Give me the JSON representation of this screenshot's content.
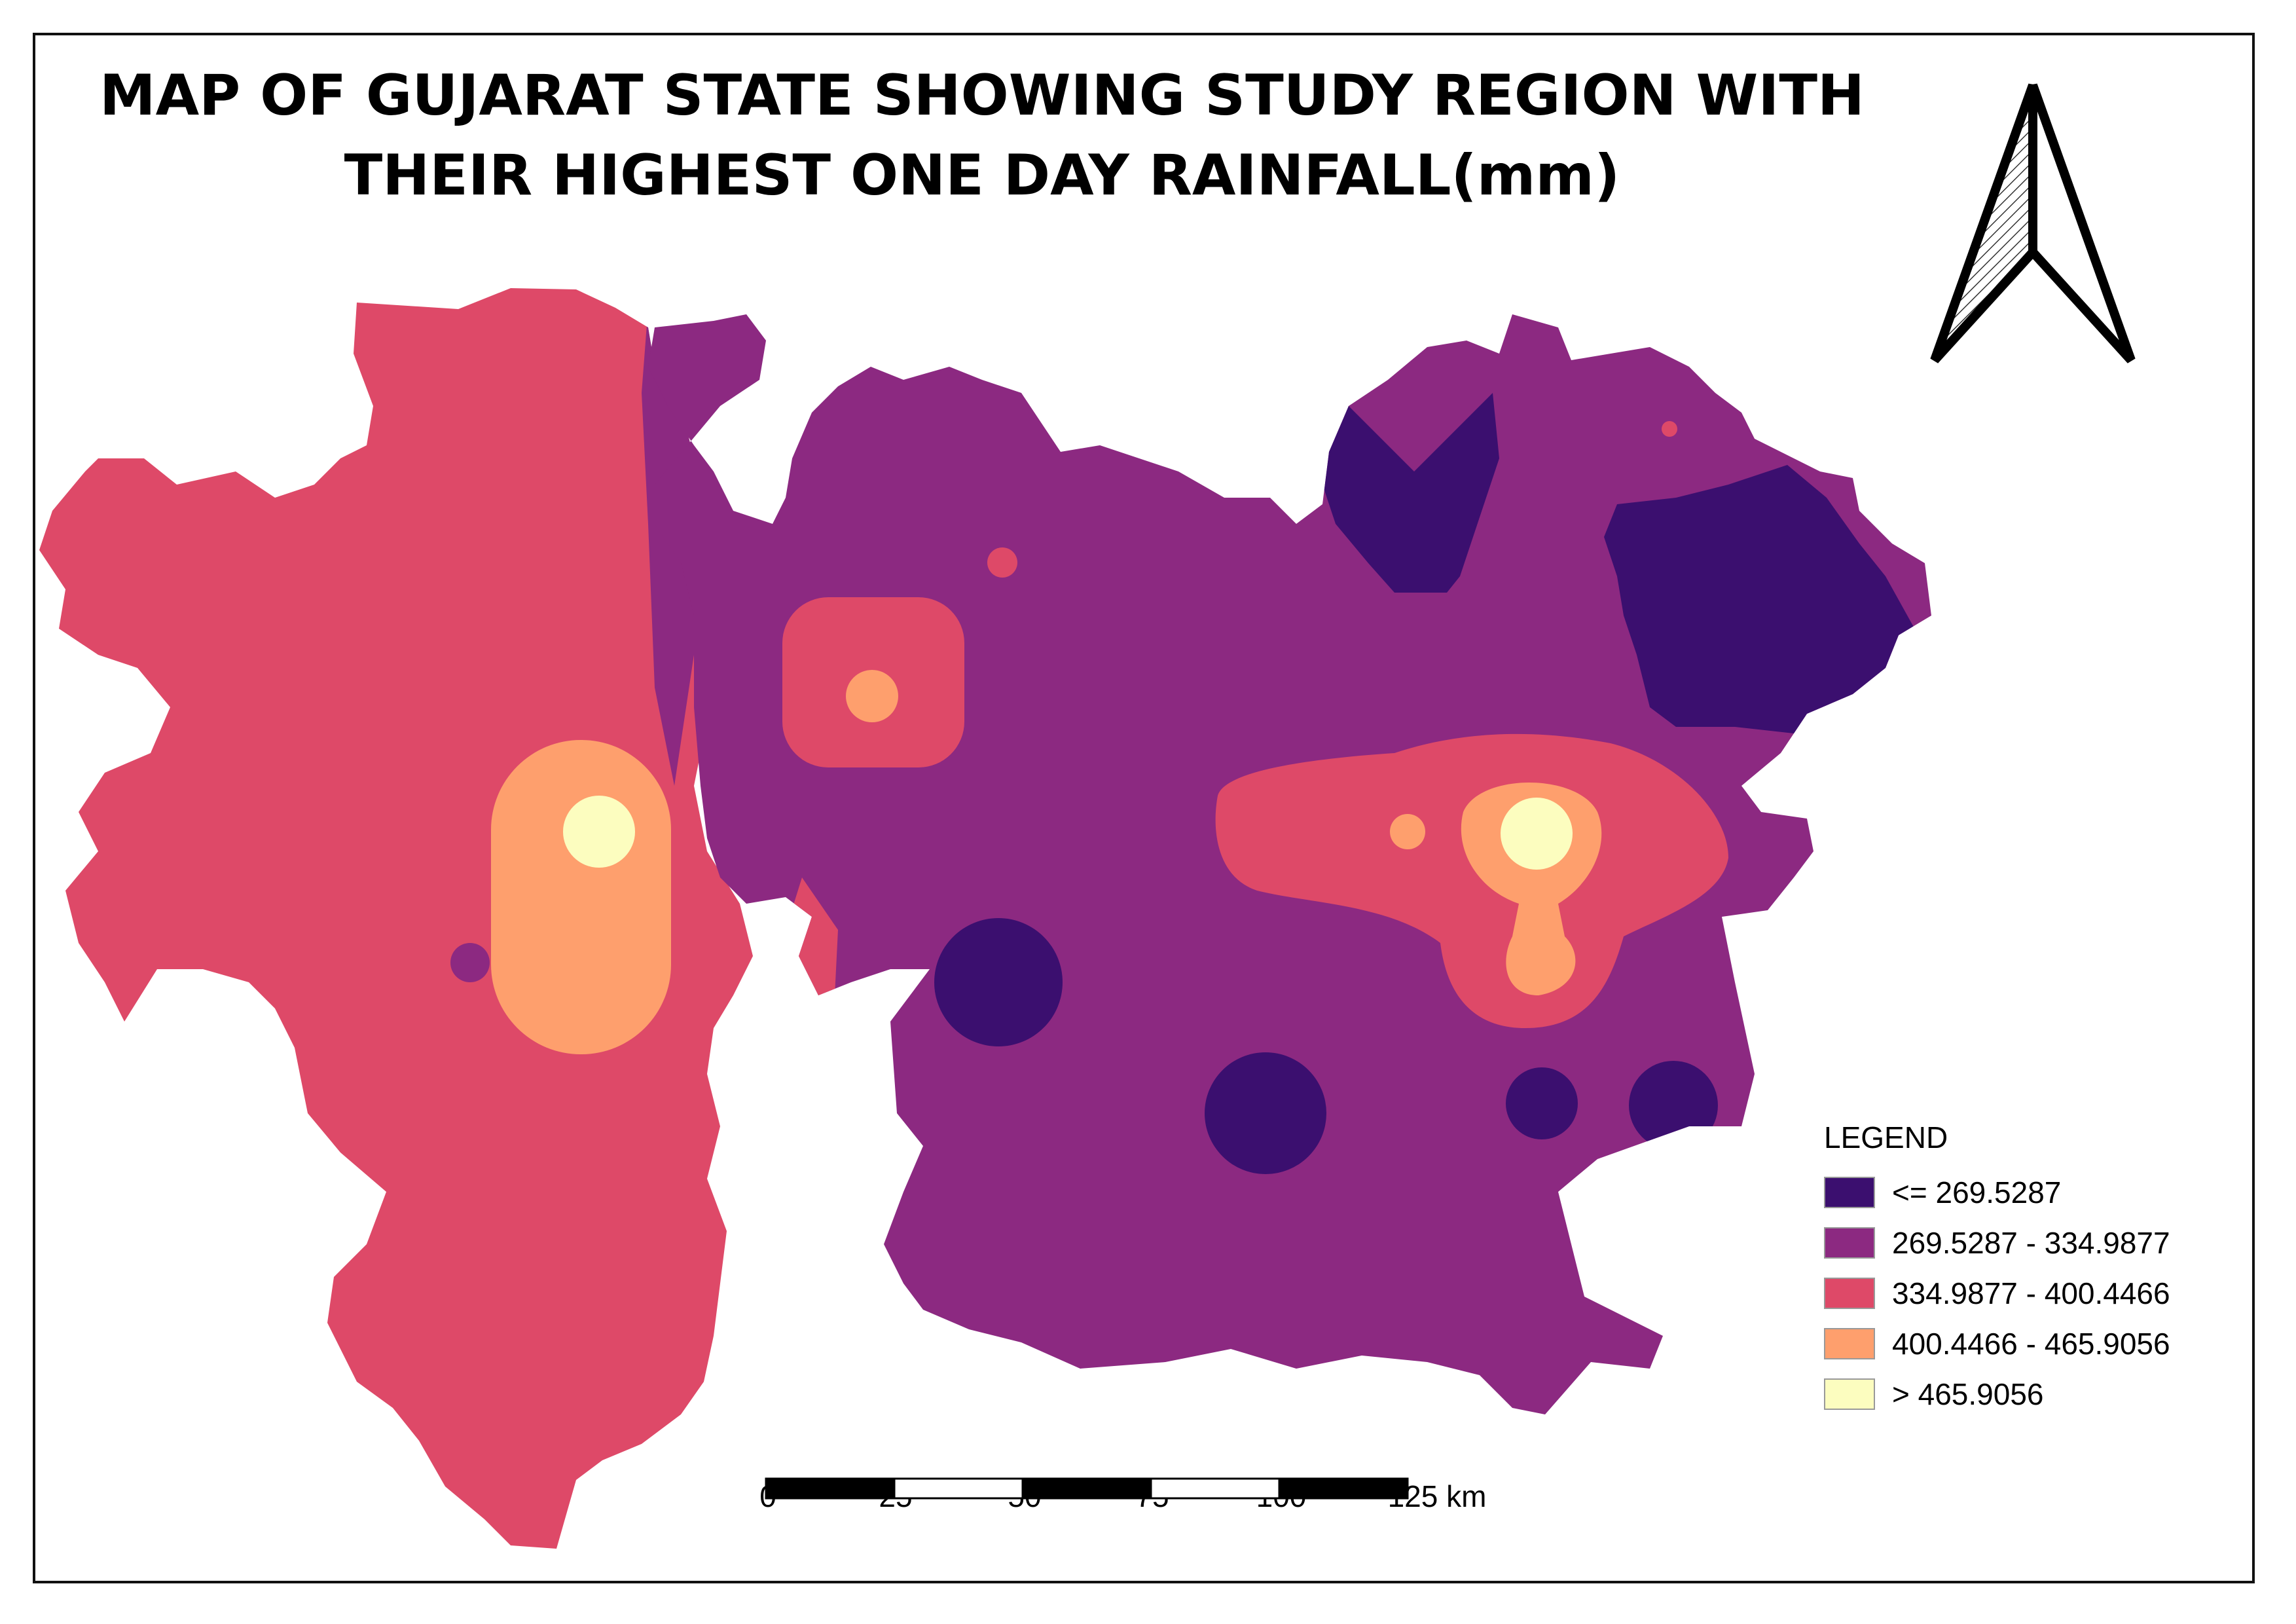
{
  "title": {
    "line1": "MAP OF GUJARAT STATE SHOWING STUDY REGION WITH",
    "line2": "THEIR HIGHEST ONE DAY RAINFALL(mm)"
  },
  "colors": {
    "class1": "#3b0f6f",
    "class2": "#8c2981",
    "class3": "#de4968",
    "class4": "#fe9f6d",
    "class5": "#fcfdbf"
  },
  "legend": {
    "title": "LEGEND",
    "items": [
      {
        "label": "<= 269.5287",
        "color": "#3b0f6f"
      },
      {
        "label": "269.5287 - 334.9877",
        "color": "#8c2981"
      },
      {
        "label": "334.9877 - 400.4466",
        "color": "#de4968"
      },
      {
        "label": "400.4466 - 465.9056",
        "color": "#fe9f6d"
      },
      {
        "label": "> 465.9056",
        "color": "#fcfdbf"
      }
    ]
  },
  "scale_bar": {
    "labels": [
      "0",
      "25",
      "50",
      "75",
      "100",
      "125 km"
    ]
  },
  "north_arrow": {
    "icon": "north-arrow-icon"
  }
}
